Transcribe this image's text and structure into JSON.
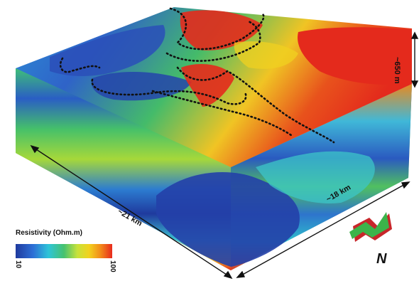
{
  "figure": {
    "dimensions": {
      "length": "~21 km",
      "width": "~18 km",
      "depth": "~650 m"
    },
    "legend": {
      "title": "Resistivity (Ohm.m)",
      "min_label": "10",
      "max_label": "100",
      "colormap": [
        "#1f3a9e",
        "#2d6fd6",
        "#2ec4d8",
        "#46c270",
        "#c8e23a",
        "#f2d21e",
        "#f28a1a",
        "#e82a1e"
      ]
    },
    "north_arrow": {
      "label": "N",
      "colors": {
        "top": "#3cb44a",
        "side": "#c8262a"
      }
    }
  }
}
